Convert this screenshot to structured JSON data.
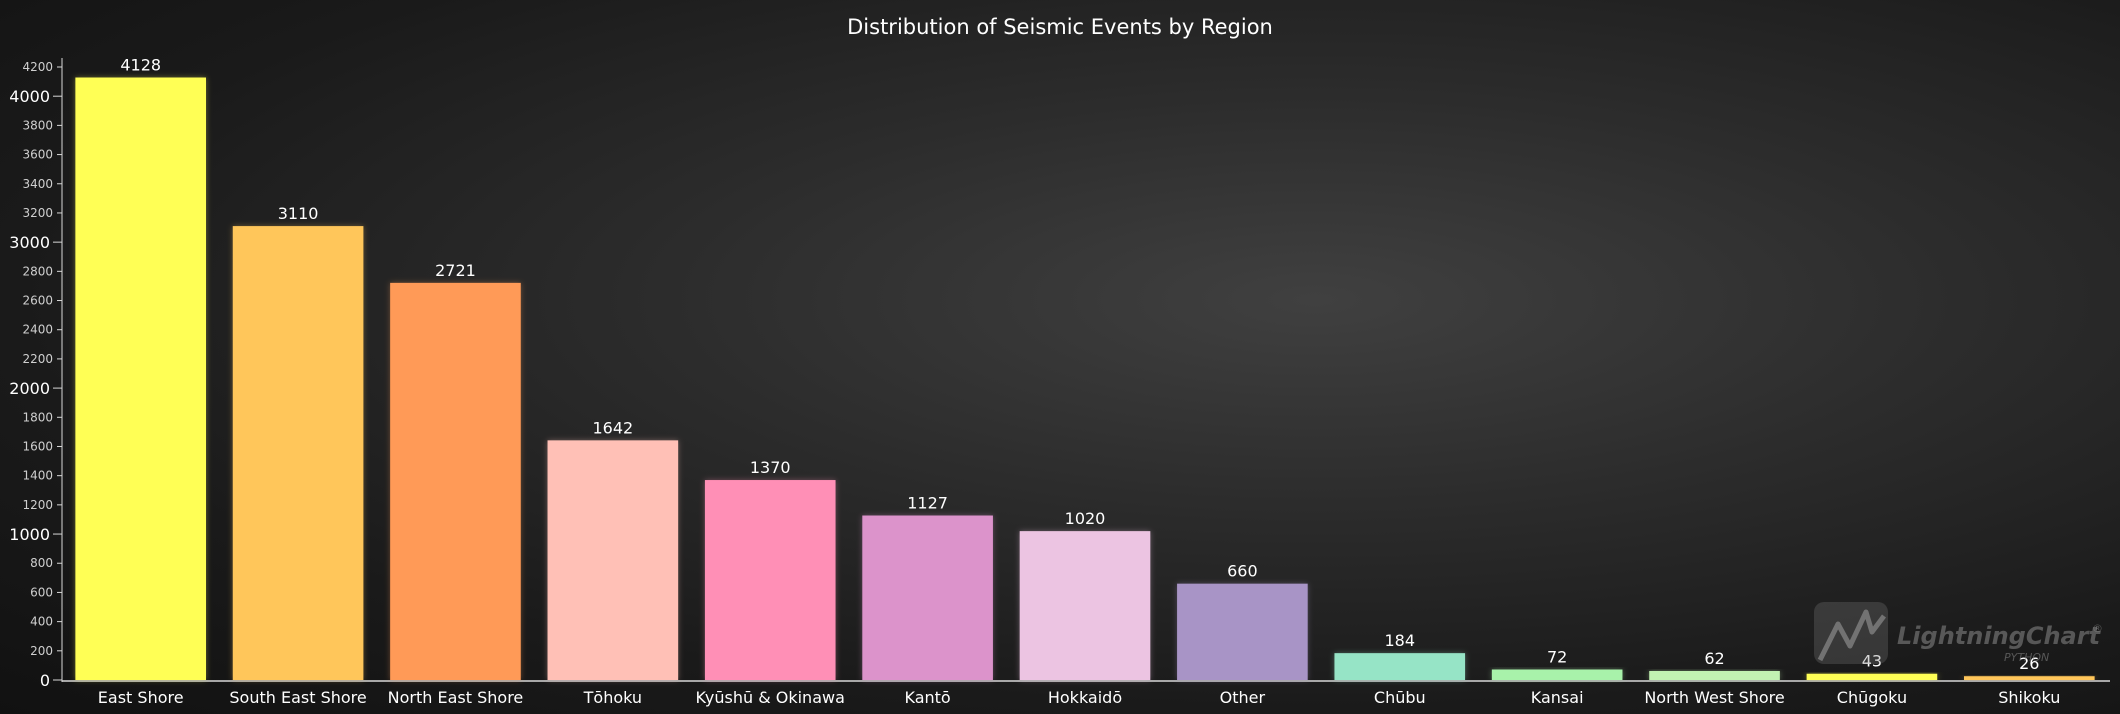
{
  "chart_data": {
    "type": "bar",
    "title": "Distribution of Seismic Events by Region",
    "xlabel": "",
    "ylabel": "",
    "ylim": [
      0,
      4200
    ],
    "y_ticks": [
      0,
      200,
      400,
      600,
      800,
      1000,
      1200,
      1400,
      1600,
      1800,
      2000,
      2200,
      2400,
      2600,
      2800,
      3000,
      3200,
      3400,
      3600,
      3800,
      4000,
      4200
    ],
    "y_major_ticks": [
      0,
      1000,
      2000,
      3000,
      4000
    ],
    "grid": false,
    "categories": [
      "East Shore",
      "South East Shore",
      "North East Shore",
      "Tōhoku",
      "Kyūshū & Okinawa",
      "Kantō",
      "Hokkaidō",
      "Other",
      "Chūbu",
      "Kansai",
      "North West Shore",
      "Chūgoku",
      "Shikoku"
    ],
    "values": [
      4128,
      3110,
      2721,
      1642,
      1370,
      1127,
      1020,
      660,
      184,
      72,
      62,
      43,
      26
    ],
    "colors": [
      "#ffff55",
      "#ffc65a",
      "#ff9a57",
      "#ffc0b6",
      "#ff8fb6",
      "#dc93cb",
      "#ecc4e2",
      "#a894c6",
      "#96e4c6",
      "#a8f2aa",
      "#c2f2b2",
      "#ffff55",
      "#ffc65a"
    ]
  },
  "watermark": {
    "brand": "LightningChart",
    "registered": "®",
    "sub": "PYTHON"
  }
}
